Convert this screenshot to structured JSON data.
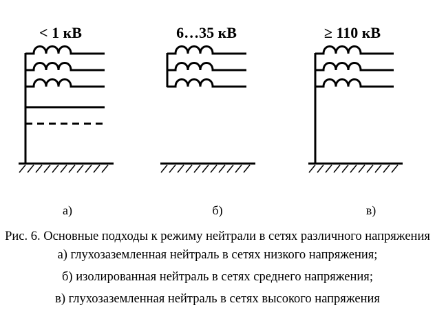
{
  "diagrams": [
    {
      "title": "< 1 кВ",
      "label": "а)"
    },
    {
      "title": "6…35 кВ",
      "label": "б)"
    },
    {
      "title": "≥ 110 кВ",
      "label": "в)"
    }
  ],
  "caption": {
    "title": "Рис. 6. Основные подходы к режиму нейтрали в сетях различного напряжения",
    "items": [
      "а) глухозаземленная нейтраль в сетях низкого напряжения;",
      "б) изолированная нейтраль в сетях среднего напряжения;",
      "в) глухозаземленная нейтраль в сетях высокого напряжения"
    ]
  }
}
